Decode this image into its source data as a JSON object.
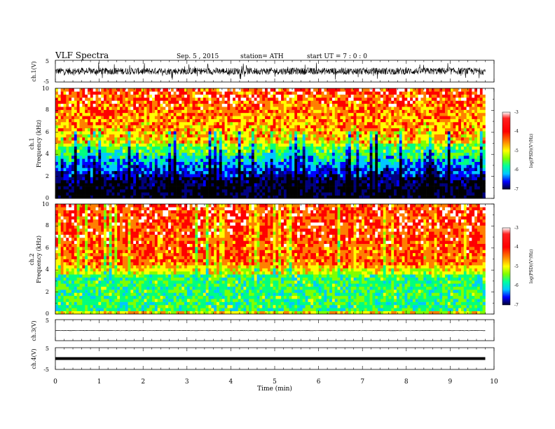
{
  "header": {
    "title": "VLF  Spectra",
    "date": "Sep. 5  , 2015",
    "station": "station= ATH",
    "start": "start  UT  =   7  : 0  : 0"
  },
  "chart_data": [
    {
      "type": "line",
      "panel": "ch1-waveform",
      "ylabel": "ch.1(V)",
      "ylim": [
        -5,
        5
      ],
      "yticks": [
        "5",
        "-5"
      ],
      "xlim": [
        0,
        10
      ],
      "trace": "noisy waveform around 0 V, amplitude about +/-2 V with spikes to about +/-4 V, over 0-9.8 min"
    },
    {
      "type": "heatmap",
      "panel": "ch1-spectrogram",
      "ylabel_lines": [
        "ch.1",
        "Frequency  (kHz)"
      ],
      "ylim": [
        0,
        10
      ],
      "yticks": [
        "0",
        "2",
        "4",
        "6",
        "8",
        "10"
      ],
      "xlim": [
        0,
        10
      ],
      "colorbar": {
        "label": "log(PSD)(V²/Hz)",
        "range": [
          -7,
          -3
        ],
        "ticks": [
          "-3",
          "-4",
          "-5",
          "-6",
          "-7"
        ]
      },
      "pattern": "low power (-6 to -7) below about 2 kHz, rising to high power (-3 to -4) above about 5 kHz across 0-9.8 min"
    },
    {
      "type": "heatmap",
      "panel": "ch2-spectrogram",
      "ylabel_lines": [
        "ch.2",
        "Frequency  (kHz)"
      ],
      "ylim": [
        0,
        10
      ],
      "yticks": [
        "0",
        "2",
        "4",
        "6",
        "8",
        "10"
      ],
      "xlim": [
        0,
        10
      ],
      "colorbar": {
        "label": "log(PSD)(V²/Hz)",
        "range": [
          -7,
          -3
        ],
        "ticks": [
          "-3",
          "-4",
          "-5",
          "-6",
          "-7"
        ]
      },
      "pattern": "mostly green (about -5) below about 3.5 kHz, high power (-3 to -4) above about 4 kHz across 0-9.8 min"
    },
    {
      "type": "line",
      "panel": "ch3-waveform",
      "ylabel": "ch.3(V)",
      "ylim": [
        -5,
        5
      ],
      "yticks": [
        "5"
      ],
      "xlim": [
        0,
        10
      ],
      "trace": "flat trace near 0 V over 0-9.8 min"
    },
    {
      "type": "line",
      "panel": "ch4-waveform",
      "ylabel": "ch.4(V)",
      "ylim": [
        -5,
        5
      ],
      "yticks": [
        "5",
        "-5"
      ],
      "xlim": [
        0,
        10
      ],
      "trace": "thick flat trace near 0 V over 0-9.8 min"
    }
  ],
  "xaxis": {
    "label": "Time  (min)",
    "ticks": [
      "0",
      "1",
      "2",
      "3",
      "4",
      "5",
      "6",
      "7",
      "8",
      "9",
      "10"
    ],
    "data_end": 9.8
  },
  "colors": {
    "colormap": [
      "#000000",
      "#00007f",
      "#0000ff",
      "#00c8ff",
      "#00ff7f",
      "#7fff00",
      "#ffff00",
      "#ff7f00",
      "#ff0000",
      "#ffffff"
    ],
    "trace": "#000000"
  }
}
